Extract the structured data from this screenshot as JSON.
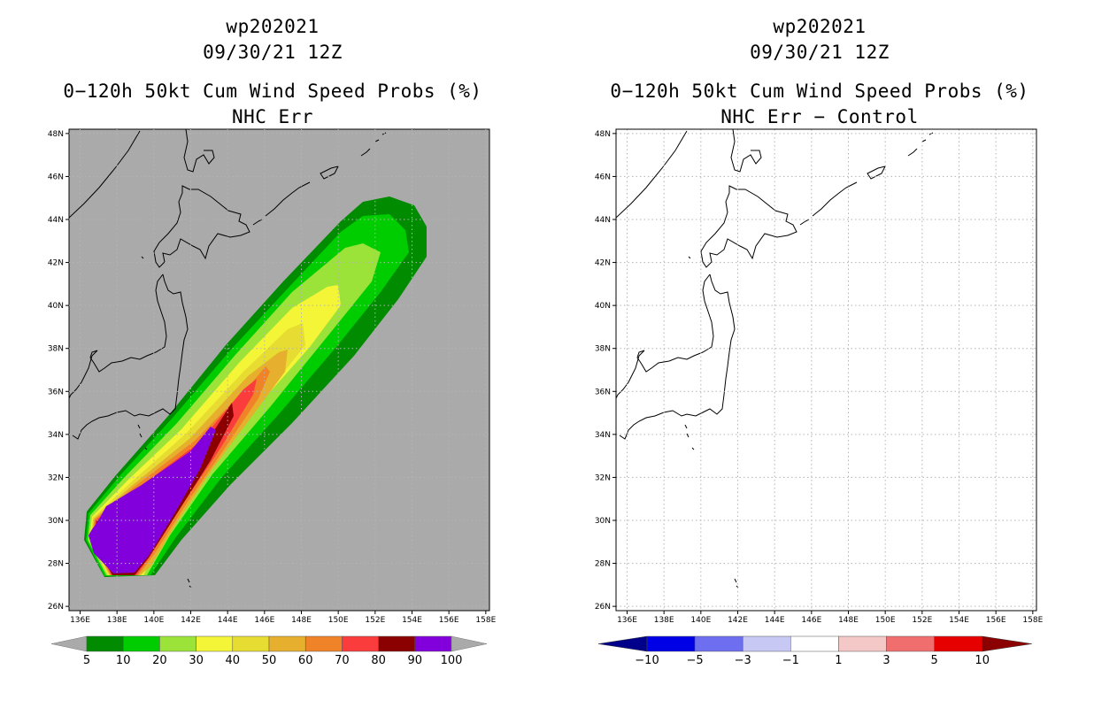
{
  "left_panel": {
    "storm_id": "wp202021",
    "datetime": "09/30/21 12Z",
    "product": "0−120h 50kt Cum Wind Speed Probs (%)",
    "subtitle": "NHC Err",
    "colorbar_labels": [
      "5",
      "10",
      "20",
      "30",
      "40",
      "50",
      "60",
      "70",
      "80",
      "90",
      "100"
    ],
    "colorbar_colors": [
      "#008b00",
      "#00cd00",
      "#9be339",
      "#f5f537",
      "#e6dc32",
      "#e6af2d",
      "#f08228",
      "#fa3c3c",
      "#8b0000",
      "#8200dc"
    ]
  },
  "right_panel": {
    "storm_id": "wp202021",
    "datetime": "09/30/21 12Z",
    "product": "0−120h 50kt Cum Wind Speed Probs (%)",
    "subtitle": "NHC Err − Control",
    "colorbar_labels": [
      "−10",
      "−5",
      "−3",
      "−1",
      "1",
      "3",
      "5",
      "10"
    ],
    "colorbar_colors": [
      "#00008b",
      "#0000e6",
      "#6e6ef0",
      "#c8c8f5",
      "#ffffff",
      "#f5c8c8",
      "#f06e6e",
      "#e60000",
      "#8b0000"
    ]
  },
  "axes": {
    "lon_labels": [
      "136E",
      "138E",
      "140E",
      "142E",
      "144E",
      "146E",
      "148E",
      "150E",
      "152E",
      "154E",
      "156E",
      "158E"
    ],
    "lat_labels": [
      "48N",
      "46N",
      "44N",
      "42N",
      "40N",
      "38N",
      "36N",
      "34N",
      "32N",
      "30N",
      "28N",
      "26N"
    ]
  }
}
